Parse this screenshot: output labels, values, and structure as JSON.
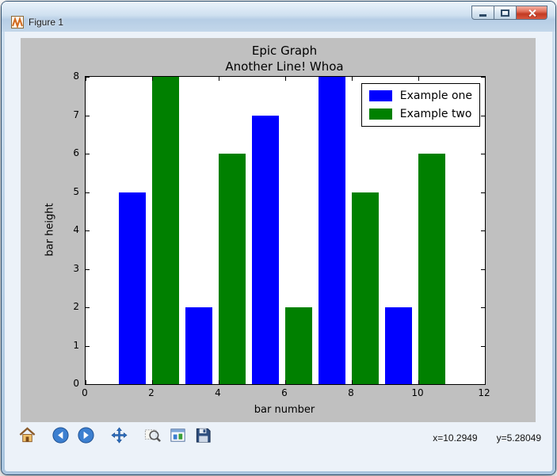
{
  "window": {
    "title": "Figure 1"
  },
  "chart_data": {
    "type": "bar",
    "title": "Epic Graph",
    "subtitle": "Another Line! Whoa",
    "xlabel": "bar number",
    "ylabel": "bar height",
    "xlim": [
      0,
      12
    ],
    "ylim": [
      0,
      8
    ],
    "x_ticks": [
      0,
      2,
      4,
      6,
      8,
      10,
      12
    ],
    "y_ticks": [
      0,
      1,
      2,
      3,
      4,
      5,
      6,
      7,
      8
    ],
    "bar_width": 0.8,
    "align": "edge",
    "grid": false,
    "legend_position": "upper right",
    "series": [
      {
        "name": "Example one",
        "color": "#0000ff",
        "x": [
          1,
          3,
          5,
          7,
          9
        ],
        "values": [
          5,
          2,
          7,
          8,
          2
        ]
      },
      {
        "name": "Example two",
        "color": "#008000",
        "x": [
          2,
          4,
          6,
          8,
          10
        ],
        "values": [
          8,
          6,
          2,
          5,
          6
        ]
      }
    ]
  },
  "toolbar": {
    "icons": [
      "home-icon",
      "back-icon",
      "forward-icon",
      "pan-icon",
      "zoom-icon",
      "subplots-icon",
      "save-icon"
    ],
    "coords": {
      "x": "x=10.2949",
      "y": "y=5.28049"
    }
  }
}
